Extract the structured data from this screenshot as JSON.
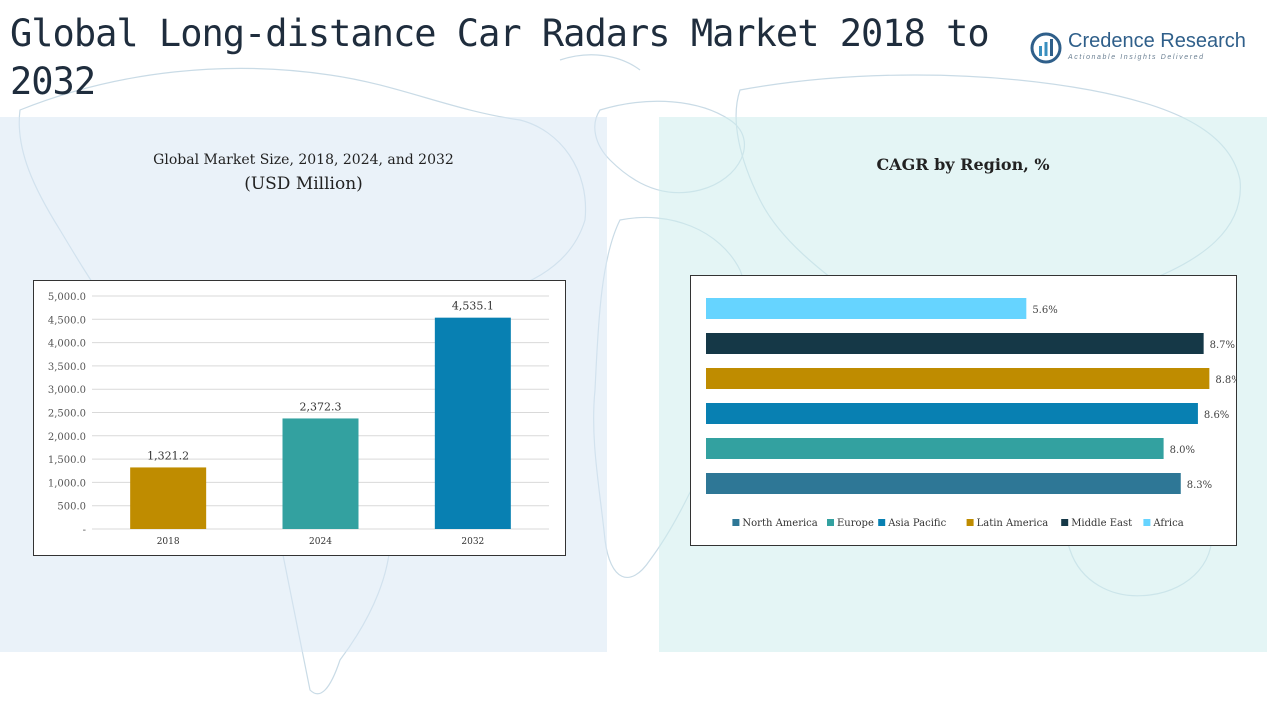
{
  "header": {
    "title": "Global Long-distance Car Radars Market 2018 to 2032",
    "brand_name": "Credence Research",
    "brand_tagline": "Actionable Insights Delivered"
  },
  "colors": {
    "north_america": "#2e7796",
    "europe": "#33a1a0",
    "asia_pacific": "#0880b2",
    "latin_america": "#bf8c00",
    "middle_east": "#153847",
    "africa": "#66d4ff"
  },
  "chart_data": [
    {
      "type": "bar",
      "title": "Global Market Size, 2018, 2024, and 2032",
      "subtitle": "(USD Million)",
      "categories": [
        "2018",
        "2024",
        "2032"
      ],
      "values": [
        1321.2,
        2372.3,
        4535.1
      ],
      "value_labels": [
        "1,321.2",
        "2,372.3",
        "4,535.1"
      ],
      "bar_colors": [
        "#bf8c00",
        "#33a1a0",
        "#0880b2"
      ],
      "ylim": [
        0,
        5000
      ],
      "yticks": [
        0,
        500,
        1000,
        1500,
        2000,
        2500,
        3000,
        3500,
        4000,
        4500,
        5000
      ],
      "ytick_labels": [
        "-",
        "500.0",
        "1,000.0",
        "1,500.0",
        "2,000.0",
        "2,500.0",
        "3,000.0",
        "3,500.0",
        "4,000.0",
        "4,500.0",
        "5,000.0"
      ],
      "grid": true
    },
    {
      "type": "bar",
      "orientation": "horizontal",
      "title": "CAGR by Region, %",
      "categories": [
        "Africa",
        "Middle East",
        "Latin America",
        "Asia Pacific",
        "Europe",
        "North America"
      ],
      "values": [
        5.6,
        8.7,
        8.8,
        8.6,
        8.0,
        8.3
      ],
      "value_labels": [
        "5.6%",
        "8.7%",
        "8.8%",
        "8.6%",
        "8.0%",
        "8.3%"
      ],
      "bar_colors": [
        "#66d4ff",
        "#153847",
        "#bf8c00",
        "#0880b2",
        "#33a1a0",
        "#2e7796"
      ],
      "xlim": [
        0,
        10
      ],
      "legend": {
        "placement": "bottom",
        "entries": [
          "North America",
          "Europe",
          "Asia Pacific",
          "Latin America",
          "Middle East",
          "Africa"
        ],
        "colors": [
          "#2e7796",
          "#33a1a0",
          "#0880b2",
          "#bf8c00",
          "#153847",
          "#66d4ff"
        ]
      },
      "grid": false
    }
  ]
}
